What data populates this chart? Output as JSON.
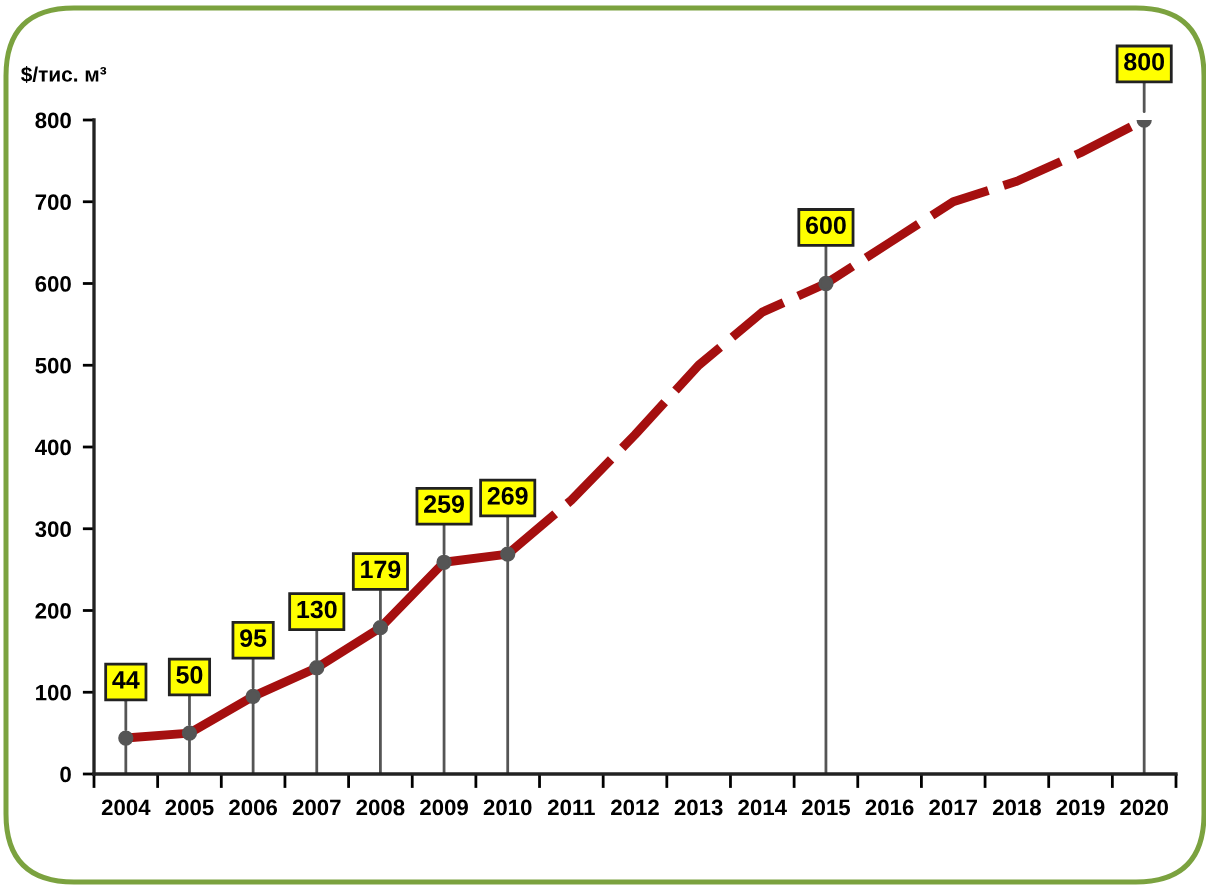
{
  "chart_data": {
    "type": "line",
    "ylabel": "$/тис. м³",
    "categories": [
      "2004",
      "2005",
      "2006",
      "2007",
      "2008",
      "2009",
      "2010",
      "2011",
      "2012",
      "2013",
      "2014",
      "2015",
      "2016",
      "2017",
      "2018",
      "2019",
      "2020"
    ],
    "ylim": [
      0,
      800
    ],
    "yticks": [
      0,
      100,
      200,
      300,
      400,
      500,
      600,
      700,
      800
    ],
    "series": [
      {
        "type": "lollipop",
        "color": "#555555",
        "marker": "circle",
        "values": [
          44,
          50,
          95,
          130,
          179,
          259,
          269,
          null,
          null,
          null,
          null,
          600,
          null,
          null,
          null,
          null,
          800
        ]
      },
      {
        "color": "#a50f0f",
        "line_style": "solid",
        "values": [
          44,
          50,
          95,
          130,
          179,
          259,
          269,
          null,
          null,
          null,
          null,
          null,
          null,
          null,
          null,
          null,
          null
        ],
        "value_labels": [
          "44",
          "50",
          "95",
          "130",
          "179",
          "259",
          "269",
          null,
          null,
          null,
          null,
          null,
          null,
          null,
          null,
          null,
          null
        ]
      },
      {
        "color": "#a50f0f",
        "line_style": "dashed",
        "values": [
          null,
          null,
          null,
          null,
          null,
          null,
          269,
          335,
          415,
          500,
          565,
          600,
          650,
          700,
          725,
          760,
          800
        ],
        "value_labels": [
          null,
          null,
          null,
          null,
          null,
          null,
          null,
          null,
          null,
          null,
          null,
          "600",
          null,
          null,
          null,
          null,
          "800"
        ]
      }
    ]
  }
}
